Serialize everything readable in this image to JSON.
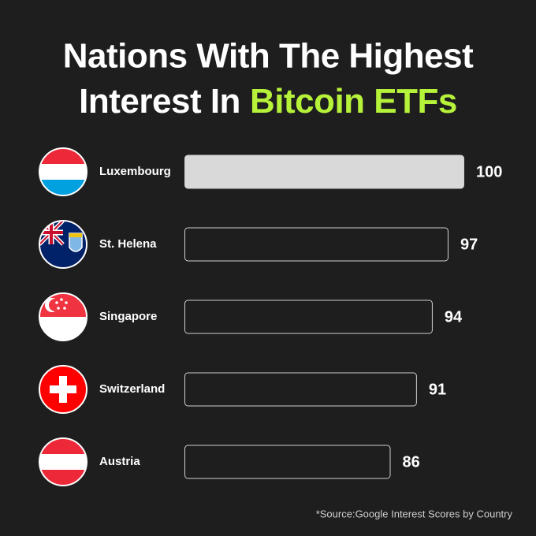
{
  "chart_data": {
    "type": "bar",
    "title": {
      "line1": "Nations With The Highest",
      "line2": "Interest In",
      "highlight": "Bitcoin ETFs"
    },
    "categories": [
      "Luxembourg",
      "St. Helena",
      "Singapore",
      "Switzerland",
      "Austria"
    ],
    "values": [
      100,
      97,
      94,
      91,
      86
    ],
    "colors": [
      "#d9d9d9",
      "#1e1e1e",
      "#1e1e1e",
      "#1e1e1e",
      "#1e1e1e"
    ],
    "stroke_color": "#d0d0d0",
    "highlight_color": "#b6f23a",
    "xlim": [
      47,
      100
    ],
    "source": "*Source:Google Interest Scores by Country"
  }
}
